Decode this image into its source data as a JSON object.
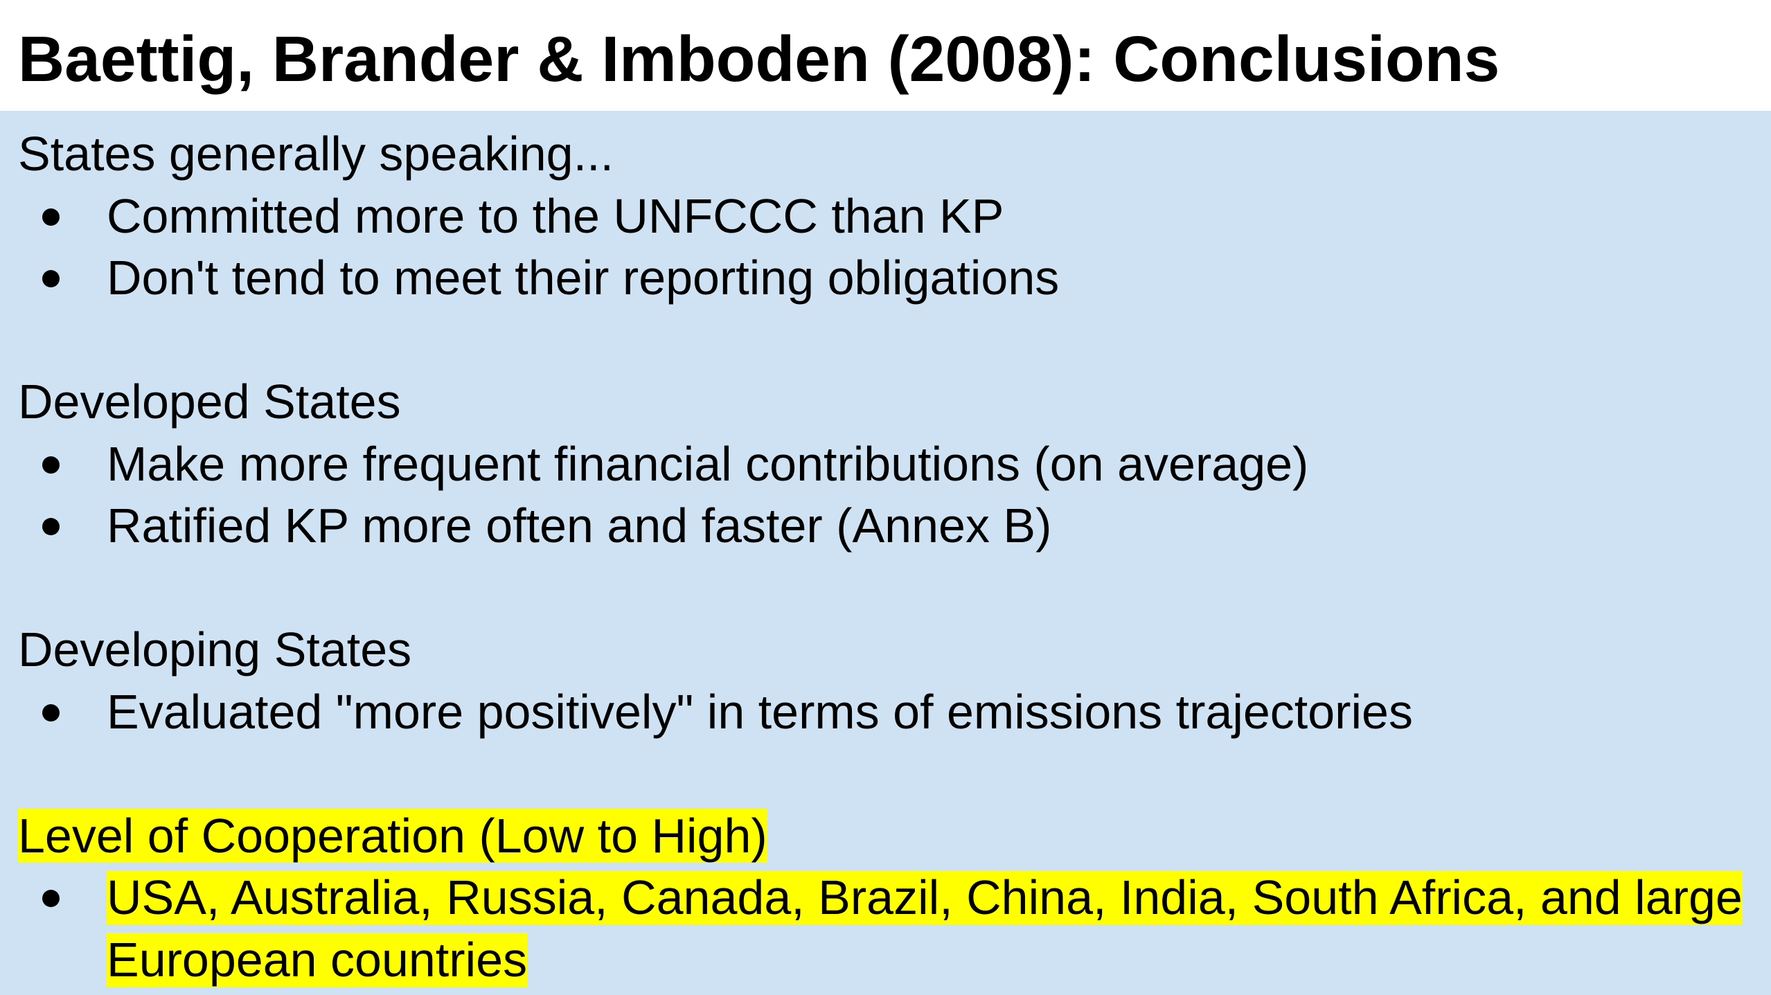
{
  "slide": {
    "title": "Baettig, Brander & Imboden (2008): Conclusions",
    "colors": {
      "body_background": "#cfe2f3",
      "highlight": "#ffff00"
    },
    "sections": [
      {
        "heading": "States generally speaking...",
        "bullets": [
          "Committed more to the UNFCCC than KP",
          "Don't tend to meet their reporting obligations"
        ]
      },
      {
        "heading": "Developed States",
        "bullets": [
          "Make more frequent financial contributions (on average)",
          "Ratified KP more often and faster (Annex B)"
        ]
      },
      {
        "heading": "Developing States",
        "bullets": [
          "Evaluated \"more positively\" in terms of emissions trajectories"
        ]
      },
      {
        "heading": "Level of Cooperation (Low to High)",
        "highlighted": true,
        "bullets": [
          "USA, Australia, Russia, Canada, Brazil, China, India, South Africa, and large European countries"
        ]
      }
    ]
  }
}
